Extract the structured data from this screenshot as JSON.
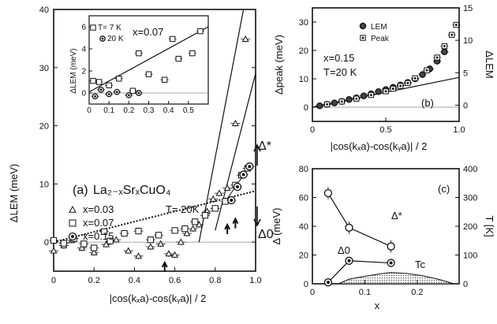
{
  "chart_data": [
    {
      "panel": "a",
      "type": "scatter",
      "label": "(a)",
      "compound": "La₂₋ₓSrₓCuO₄",
      "xlabel": "|cos(kₓa)-cos(kᵧa)| / 2",
      "ylabel": "ΔLEM (meV)",
      "xlim": [
        0,
        1.0
      ],
      "ylim": [
        -5,
        40
      ],
      "xticks": [
        "0",
        "0.2",
        "0.4",
        "0.6",
        "0.8",
        "1.0"
      ],
      "yticks": [
        "0",
        "10",
        "20",
        "30",
        "40"
      ],
      "temperature": "T= 20K",
      "annotations": {
        "delta_star": "Δ*",
        "delta_0": "Δ0"
      },
      "series": [
        {
          "name": "x=0.03",
          "marker": "triangle",
          "x": [
            0.0,
            0.05,
            0.09,
            0.14,
            0.2,
            0.26,
            0.31,
            0.37,
            0.42,
            0.48,
            0.53,
            0.57,
            0.6,
            0.63,
            0.66,
            0.69,
            0.72,
            0.76,
            0.79,
            0.82,
            0.86,
            0.9,
            0.95
          ],
          "y": [
            -1.5,
            -0.6,
            0.3,
            -1.0,
            -1.8,
            -0.4,
            0.4,
            -1.5,
            -2.4,
            -0.8,
            -0.3,
            -2.0,
            -2.2,
            0.0,
            1.5,
            2.3,
            3.0,
            5.3,
            7.4,
            8.4,
            9.3,
            20.4,
            34.9
          ]
        },
        {
          "name": "x=0.07",
          "marker": "square",
          "x": [
            0.0,
            0.05,
            0.1,
            0.15,
            0.2,
            0.25,
            0.28,
            0.35,
            0.42,
            0.48,
            0.52,
            0.6,
            0.65,
            0.7,
            0.75,
            0.8,
            0.85,
            0.9,
            0.93,
            0.96
          ],
          "y": [
            0.3,
            -0.2,
            0.6,
            -0.3,
            -1.0,
            1.8,
            0.2,
            1.5,
            1.9,
            0.4,
            1.2,
            2.0,
            2.3,
            3.5,
            4.6,
            5.8,
            7.0,
            9.8,
            11.5,
            12.7
          ]
        },
        {
          "name": "x=0.15",
          "marker": "circle",
          "x": [
            0.88,
            0.91,
            0.94,
            0.97
          ],
          "y": [
            7.2,
            9.5,
            11.6,
            13.0
          ]
        }
      ],
      "inset": {
        "doping": "x=0.07",
        "ylabel": "ΔLEM (meV)",
        "xlim": [
          0,
          0.6
        ],
        "ylim": [
          -1,
          7
        ],
        "xticks": [
          "0",
          "0.1",
          "0.2",
          "0.3",
          "0.4",
          "0.5"
        ],
        "yticks": [
          "0",
          "2",
          "4",
          "6"
        ],
        "series": [
          {
            "name": "T= 7 K",
            "marker": "square",
            "x": [
              0.02,
              0.05,
              0.1,
              0.15,
              0.22,
              0.25,
              0.3,
              0.38,
              0.42,
              0.45,
              0.52,
              0.56
            ],
            "y": [
              1.1,
              1.0,
              0.7,
              1.3,
              0.2,
              3.6,
              1.7,
              1.2,
              4.9,
              3.1,
              3.6,
              5.6
            ]
          },
          {
            "name": "20 K",
            "marker": "circle",
            "x": [
              0.03,
              0.06,
              0.1,
              0.14,
              0.2,
              0.25
            ],
            "y": [
              -0.3,
              0.3,
              -0.1,
              0.1,
              -0.2,
              0.0
            ]
          }
        ]
      }
    },
    {
      "panel": "b",
      "type": "scatter",
      "label": "(b)",
      "xlabel": "|cos(kₓa)-cos(kᵧa)| / 2",
      "ylabel_left": "Δpeak (meV)",
      "ylabel_right": "ΔLEM",
      "text": [
        "x=0.15",
        "T=20 K"
      ],
      "xlim": [
        0,
        1.0
      ],
      "ylim_left": [
        -5,
        35
      ],
      "ylim_right": [
        -2.5,
        15
      ],
      "xticks": [
        "0",
        "0.5",
        "1.0"
      ],
      "yticks_left": [
        "0",
        "10",
        "20",
        "30"
      ],
      "yticks_right": [
        "0",
        "5",
        "10",
        "15"
      ],
      "series": [
        {
          "name": "LEM",
          "marker": "circle",
          "x": [
            0.05,
            0.1,
            0.15,
            0.2,
            0.25,
            0.3,
            0.35,
            0.4,
            0.45,
            0.5,
            0.55,
            0.6,
            0.65,
            0.7,
            0.75,
            0.8,
            0.85,
            0.9
          ],
          "y": [
            0.5,
            1.0,
            1.5,
            2.0,
            2.7,
            3.3,
            4.0,
            4.7,
            5.5,
            6.2,
            7.0,
            7.8,
            8.7,
            10.0,
            11.5,
            13.5,
            16.2,
            19.5
          ]
        },
        {
          "name": "Peak",
          "marker": "square",
          "x": [
            0.1,
            0.2,
            0.3,
            0.4,
            0.5,
            0.55,
            0.6,
            0.65,
            0.7,
            0.78,
            0.85,
            0.9,
            0.95,
            0.98
          ],
          "y": [
            1.0,
            2.0,
            3.0,
            4.3,
            5.6,
            6.5,
            7.5,
            8.5,
            10.2,
            13.0,
            17.5,
            21.5,
            25.5,
            29.0
          ]
        }
      ]
    },
    {
      "panel": "c",
      "type": "line",
      "label": "(c)",
      "xlabel": "x",
      "ylabel_left": "Δ (meV)",
      "ylabel_right": "T [K]",
      "xlim": [
        0,
        0.28
      ],
      "ylim_left": [
        0,
        80
      ],
      "ylim_right": [
        0,
        400
      ],
      "xticks": [
        "0",
        "0.1",
        "0.2"
      ],
      "yticks_left": [
        "0",
        "20",
        "40",
        "60",
        "80"
      ],
      "yticks_right": [
        "0",
        "100",
        "200",
        "300",
        "400"
      ],
      "series": [
        {
          "name": "Δ*",
          "marker": "circle",
          "x": [
            0.03,
            0.07,
            0.15
          ],
          "y": [
            63,
            39,
            26
          ]
        },
        {
          "name": "Δ0",
          "marker": "circle",
          "x": [
            0.03,
            0.07,
            0.15
          ],
          "y": [
            1,
            16,
            14.5
          ]
        },
        {
          "name": "Tc",
          "type": "area",
          "x": [
            0.05,
            0.07,
            0.1,
            0.13,
            0.15,
            0.18,
            0.21,
            0.24,
            0.27
          ],
          "y": [
            0,
            16,
            26,
            35,
            39,
            36,
            28,
            16,
            0
          ]
        }
      ]
    }
  ]
}
